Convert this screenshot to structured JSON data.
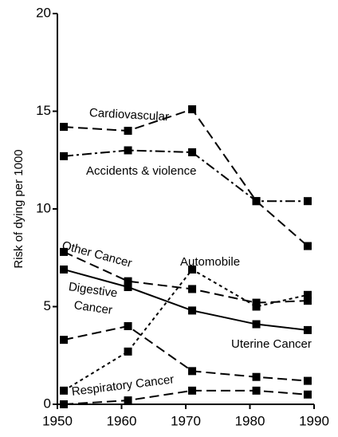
{
  "chart_data": {
    "type": "line",
    "ylabel": "Risk of dying per 1000",
    "x": [
      1951,
      1961,
      1971,
      1981,
      1989
    ],
    "series": [
      {
        "name": "Cardiovascular",
        "color": "#000000",
        "dash": "dashed",
        "values": [
          14.2,
          14.0,
          15.1,
          10.4,
          8.1
        ]
      },
      {
        "name": "Accidents & violence",
        "color": "#000000",
        "dash": "dashdot",
        "values": [
          12.7,
          13.0,
          12.9,
          10.4,
          10.4
        ]
      },
      {
        "name": "Other Cancer",
        "color": "#000000",
        "dash": "dashed",
        "values": [
          7.8,
          6.3,
          5.9,
          5.2,
          5.3
        ]
      },
      {
        "name": "Automobile",
        "color": "#000000",
        "dash": "dotted",
        "values": [
          0.7,
          2.7,
          6.9,
          5.0,
          5.6
        ]
      },
      {
        "name": "Digestive Cancer",
        "color": "#000000",
        "dash": "solid",
        "values": [
          6.9,
          6.0,
          4.8,
          4.1,
          3.8
        ]
      },
      {
        "name": "Uterine Cancer",
        "color": "#000000",
        "dash": "dashed",
        "values": [
          3.3,
          4.0,
          1.7,
          1.4,
          1.2
        ]
      },
      {
        "name": "Respiratory Cancer",
        "color": "#000000",
        "dash": "dashed",
        "values": [
          0.0,
          0.2,
          0.7,
          0.7,
          0.5
        ]
      }
    ],
    "xlim": [
      1950,
      1990
    ],
    "xticks": [
      1950,
      1960,
      1970,
      1980,
      1990
    ],
    "ylim": [
      0,
      20
    ],
    "yticks": [
      0,
      5,
      10,
      15,
      20
    ],
    "grid": false
  }
}
